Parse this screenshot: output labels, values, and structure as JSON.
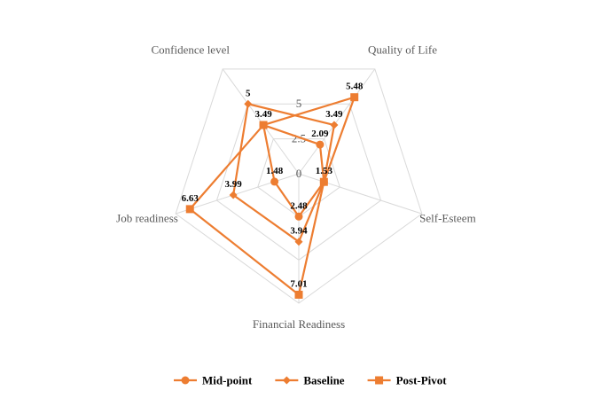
{
  "chart_data": {
    "type": "radar",
    "categories": [
      "Quality of Life",
      "Self-Esteem",
      "Financial Readiness",
      "Job readiness",
      "Confidence level"
    ],
    "ticks": [
      "0",
      "2.5",
      "5"
    ],
    "rmax": 7.5,
    "series": [
      {
        "name": "Mid-point",
        "marker": "circle",
        "values": [
          2.09,
          1.53,
          2.48,
          1.48,
          3.49
        ]
      },
      {
        "name": "Baseline",
        "marker": "diamond",
        "values": [
          3.49,
          1.53,
          3.94,
          3.99,
          5
        ]
      },
      {
        "name": "Post-Pivot",
        "marker": "square",
        "values": [
          5.48,
          1.53,
          7.01,
          6.63,
          3.49
        ]
      }
    ],
    "data_labels": [
      {
        "text": "5",
        "series": 1,
        "index": 4
      },
      {
        "text": "3.49",
        "series": 0,
        "index": 4
      },
      {
        "text": "5.48",
        "series": 2,
        "index": 0
      },
      {
        "text": "3.49",
        "series": 1,
        "index": 0
      },
      {
        "text": "2.09",
        "series": 0,
        "index": 0
      },
      {
        "text": "1.53",
        "series": 2,
        "index": 1
      },
      {
        "text": "1.48",
        "series": 0,
        "index": 3
      },
      {
        "text": "3.99",
        "series": 1,
        "index": 3
      },
      {
        "text": "6.63",
        "series": 2,
        "index": 3
      },
      {
        "text": "2.48",
        "series": 0,
        "index": 2
      },
      {
        "text": "3.94",
        "series": 1,
        "index": 2
      },
      {
        "text": "7.01",
        "series": 2,
        "index": 2
      }
    ],
    "color": "#ED7D31",
    "grid_color": "#D9D9D9",
    "legend_position": "bottom"
  }
}
